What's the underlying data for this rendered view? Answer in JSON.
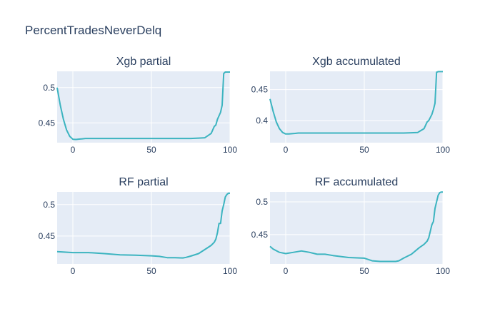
{
  "figure": {
    "title": "PercentTradesNeverDelq"
  },
  "colors": {
    "line": "#3cb4c0",
    "plot_bg": "#e5ecf6",
    "grid": "#ffffff",
    "text": "#2a3f5f"
  },
  "chart_data": [
    {
      "type": "line",
      "title": "Xgb partial",
      "xlim": [
        -10,
        100
      ],
      "ylim": [
        0.422,
        0.523
      ],
      "x_ticks": [
        0,
        50,
        100
      ],
      "y_ticks": [
        0.45,
        0.5
      ],
      "y_tick_labels": [
        "0.45",
        "0.5"
      ],
      "x": [
        -10,
        -8,
        -6,
        -4,
        -2,
        0,
        2,
        4,
        6,
        8,
        10,
        20,
        40,
        60,
        75,
        80,
        84,
        86,
        88,
        90,
        91,
        92,
        93,
        94,
        95,
        96,
        97,
        98,
        99,
        100
      ],
      "y": [
        0.5,
        0.475,
        0.455,
        0.44,
        0.431,
        0.4268,
        0.4265,
        0.427,
        0.4275,
        0.428,
        0.428,
        0.428,
        0.428,
        0.428,
        0.428,
        0.4285,
        0.429,
        0.432,
        0.435,
        0.445,
        0.447,
        0.455,
        0.46,
        0.465,
        0.475,
        0.52,
        0.522,
        0.522,
        0.522,
        0.522
      ]
    },
    {
      "type": "line",
      "title": "Xgb accumulated",
      "xlim": [
        -10,
        100
      ],
      "ylim": [
        0.3645,
        0.4795
      ],
      "x_ticks": [
        0,
        50,
        100
      ],
      "y_ticks": [
        0.4,
        0.45
      ],
      "y_tick_labels": [
        "0.4",
        "0.45"
      ],
      "x": [
        -10,
        -8,
        -6,
        -4,
        -2,
        0,
        2,
        4,
        6,
        8,
        10,
        20,
        40,
        60,
        75,
        80,
        84,
        86,
        88,
        90,
        91,
        92,
        93,
        94,
        95,
        96,
        97,
        98,
        99,
        100
      ],
      "y": [
        0.435,
        0.415,
        0.398,
        0.387,
        0.381,
        0.3785,
        0.3785,
        0.379,
        0.3795,
        0.38,
        0.38,
        0.38,
        0.38,
        0.38,
        0.38,
        0.3805,
        0.381,
        0.384,
        0.387,
        0.398,
        0.4,
        0.405,
        0.41,
        0.418,
        0.428,
        0.478,
        0.479,
        0.479,
        0.479,
        0.479
      ]
    },
    {
      "type": "line",
      "title": "RF partial",
      "xlim": [
        -10,
        100
      ],
      "ylim": [
        0.4055,
        0.5202
      ],
      "x_ticks": [
        0,
        50,
        100
      ],
      "y_ticks": [
        0.45,
        0.5
      ],
      "y_tick_labels": [
        "0.45",
        "0.5"
      ],
      "x": [
        -10,
        0,
        10,
        20,
        30,
        40,
        50,
        55,
        60,
        65,
        70,
        72,
        75,
        80,
        85,
        88,
        90,
        91,
        92,
        93,
        94,
        95,
        96,
        97,
        98,
        99,
        100
      ],
      "y": [
        0.425,
        0.4235,
        0.4235,
        0.422,
        0.42,
        0.4195,
        0.4185,
        0.4175,
        0.4155,
        0.4155,
        0.415,
        0.416,
        0.418,
        0.422,
        0.43,
        0.435,
        0.44,
        0.445,
        0.455,
        0.47,
        0.47,
        0.49,
        0.5,
        0.512,
        0.516,
        0.518,
        0.518
      ]
    },
    {
      "type": "line",
      "title": "RF accumulated",
      "xlim": [
        -10,
        100
      ],
      "ylim": [
        0.4052,
        0.5152
      ],
      "x_ticks": [
        0,
        50,
        100
      ],
      "y_ticks": [
        0.45,
        0.5
      ],
      "y_tick_labels": [
        "0.45",
        "0.5"
      ],
      "x": [
        -10,
        -8,
        -4,
        0,
        5,
        10,
        15,
        20,
        25,
        30,
        40,
        50,
        55,
        60,
        65,
        70,
        72,
        75,
        80,
        85,
        88,
        90,
        91,
        92,
        93,
        94,
        95,
        96,
        97,
        98,
        99,
        100
      ],
      "y": [
        0.432,
        0.428,
        0.423,
        0.421,
        0.423,
        0.425,
        0.423,
        0.42,
        0.42,
        0.418,
        0.415,
        0.414,
        0.41,
        0.409,
        0.409,
        0.409,
        0.41,
        0.414,
        0.42,
        0.43,
        0.435,
        0.44,
        0.445,
        0.455,
        0.465,
        0.47,
        0.49,
        0.5,
        0.51,
        0.514,
        0.515,
        0.515
      ]
    }
  ]
}
